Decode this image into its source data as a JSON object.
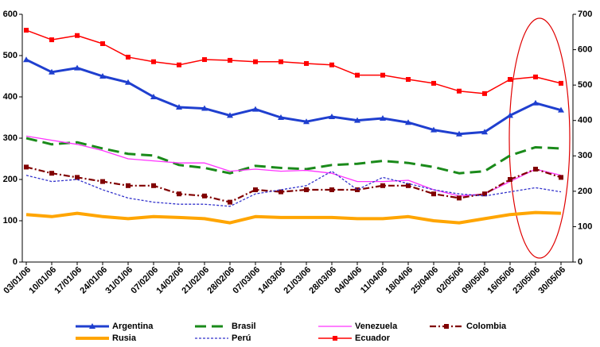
{
  "chart_data": {
    "type": "line",
    "categories": [
      "03/01/06",
      "10/01/06",
      "17/01/06",
      "24/01/06",
      "31/01/06",
      "07/02/06",
      "14/02/06",
      "21/02/06",
      "28/02/06",
      "07/03/06",
      "14/03/06",
      "21/03/06",
      "28/03/06",
      "04/04/06",
      "11/04/06",
      "18/04/06",
      "25/04/06",
      "02/05/06",
      "09/05/06",
      "16/05/06",
      "23/05/06",
      "30/05/06"
    ],
    "ylim": [
      0,
      600
    ],
    "yticks": [
      0,
      100,
      200,
      300,
      400,
      500,
      600
    ],
    "y2lim": [
      0,
      700
    ],
    "y2ticks": [
      0,
      100,
      200,
      300,
      400,
      500,
      600,
      700
    ],
    "series": [
      {
        "name": "Argentina",
        "color": "#1f3fcf",
        "width": 3,
        "dash": "",
        "marker": "triangle",
        "values": [
          490,
          460,
          470,
          450,
          435,
          400,
          375,
          372,
          355,
          370,
          350,
          340,
          352,
          343,
          348,
          338,
          320,
          310,
          315,
          355,
          385,
          368
        ]
      },
      {
        "name": "Brasil",
        "color": "#1a8a1a",
        "width": 3,
        "dash": "14 7",
        "marker": "none",
        "values": [
          300,
          285,
          290,
          275,
          262,
          258,
          235,
          228,
          215,
          233,
          228,
          225,
          235,
          238,
          245,
          240,
          230,
          215,
          220,
          258,
          278,
          275
        ]
      },
      {
        "name": "Venezuela",
        "color": "#ff33ff",
        "width": 1.3,
        "dash": "",
        "marker": "none",
        "values": [
          305,
          295,
          285,
          270,
          250,
          245,
          240,
          240,
          220,
          225,
          220,
          222,
          215,
          195,
          195,
          198,
          175,
          160,
          165,
          195,
          225,
          210
        ]
      },
      {
        "name": "Colombia",
        "color": "#800000",
        "width": 2.2,
        "dash": "8 3 2 3",
        "marker": "square",
        "values": [
          230,
          215,
          205,
          195,
          185,
          185,
          165,
          160,
          145,
          175,
          170,
          175,
          175,
          175,
          185,
          185,
          165,
          155,
          165,
          200,
          225,
          205
        ]
      },
      {
        "name": "Rusia",
        "color": "#ffa500",
        "width": 4,
        "dash": "",
        "marker": "none",
        "values": [
          115,
          110,
          118,
          110,
          105,
          110,
          108,
          105,
          95,
          110,
          108,
          108,
          108,
          105,
          105,
          110,
          100,
          95,
          105,
          115,
          120,
          118
        ]
      },
      {
        "name": "Perú",
        "color": "#3333cc",
        "width": 1.3,
        "dash": "3 2",
        "marker": "none",
        "values": [
          210,
          195,
          200,
          175,
          155,
          145,
          140,
          140,
          135,
          165,
          175,
          185,
          220,
          175,
          205,
          190,
          175,
          165,
          160,
          170,
          180,
          170
        ]
      },
      {
        "name": "Ecuador",
        "color": "#ff0000",
        "width": 1.5,
        "dash": "",
        "marker": "square",
        "axis": "y2",
        "values": [
          655,
          628,
          640,
          617,
          579,
          566,
          557,
          572,
          570,
          566,
          566,
          561,
          557,
          528,
          528,
          516,
          505,
          483,
          476,
          516,
          523,
          505
        ]
      }
    ]
  }
}
